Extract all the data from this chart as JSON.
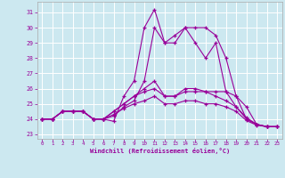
{
  "xlabel": "Windchill (Refroidissement éolien,°C)",
  "bg_color": "#cce8f0",
  "line_color": "#990099",
  "grid_color": "#ffffff",
  "xlim": [
    -0.5,
    23.5
  ],
  "ylim": [
    22.7,
    31.7
  ],
  "yticks": [
    23,
    24,
    25,
    26,
    27,
    28,
    29,
    30,
    31
  ],
  "xticks": [
    0,
    1,
    2,
    3,
    4,
    5,
    6,
    7,
    8,
    9,
    10,
    11,
    12,
    13,
    14,
    15,
    16,
    17,
    18,
    19,
    20,
    21,
    22,
    23
  ],
  "lines": [
    {
      "x": [
        0,
        1,
        2,
        3,
        4,
        5,
        6,
        7,
        8,
        9,
        10,
        11,
        12,
        13,
        14,
        15,
        16,
        17,
        18,
        19,
        20,
        21,
        22
      ],
      "y": [
        24.0,
        24.0,
        24.5,
        24.5,
        24.5,
        24.0,
        24.0,
        23.85,
        25.5,
        26.5,
        30.0,
        31.2,
        29.0,
        29.0,
        30.0,
        29.0,
        28.0,
        29.0,
        25.8,
        24.8,
        24.1,
        23.65,
        23.5
      ]
    },
    {
      "x": [
        0,
        1,
        2,
        3,
        4,
        5,
        6,
        7,
        8,
        9,
        10,
        11,
        12,
        13,
        14,
        15,
        16,
        17,
        18,
        19,
        20,
        21,
        22,
        23
      ],
      "y": [
        24.0,
        24.0,
        24.5,
        24.5,
        24.5,
        24.0,
        24.0,
        24.2,
        24.8,
        25.2,
        26.5,
        30.0,
        29.0,
        29.5,
        30.0,
        30.0,
        30.0,
        29.5,
        28.0,
        25.5,
        24.8,
        23.65,
        23.5,
        23.5
      ]
    },
    {
      "x": [
        0,
        1,
        2,
        3,
        4,
        5,
        6,
        7,
        8,
        9,
        10,
        11,
        12,
        13,
        14,
        15,
        16,
        17,
        18,
        19,
        20,
        21,
        22,
        23
      ],
      "y": [
        24.0,
        24.0,
        24.5,
        24.5,
        24.5,
        24.0,
        24.0,
        24.5,
        25.0,
        25.5,
        26.0,
        26.5,
        25.5,
        25.5,
        26.0,
        26.0,
        25.8,
        25.8,
        25.8,
        25.5,
        24.0,
        23.65,
        23.5,
        23.5
      ]
    },
    {
      "x": [
        0,
        1,
        2,
        3,
        4,
        5,
        6,
        7,
        8,
        9,
        10,
        11,
        12,
        13,
        14,
        15,
        16,
        17,
        18,
        19,
        20,
        21,
        22,
        23
      ],
      "y": [
        24.0,
        24.0,
        24.5,
        24.5,
        24.5,
        24.0,
        24.0,
        24.5,
        25.0,
        25.5,
        25.8,
        26.0,
        25.5,
        25.5,
        25.8,
        25.8,
        25.8,
        25.5,
        25.2,
        24.8,
        24.0,
        23.65,
        23.5,
        23.5
      ]
    },
    {
      "x": [
        0,
        1,
        2,
        3,
        4,
        5,
        6,
        7,
        8,
        9,
        10,
        11,
        12,
        13,
        14,
        15,
        16,
        17,
        18,
        19,
        20,
        21,
        22,
        23
      ],
      "y": [
        24.0,
        24.0,
        24.5,
        24.5,
        24.5,
        24.0,
        24.0,
        24.3,
        24.7,
        25.0,
        25.2,
        25.5,
        25.0,
        25.0,
        25.2,
        25.2,
        25.0,
        25.0,
        24.8,
        24.5,
        23.9,
        23.6,
        23.5,
        23.5
      ]
    }
  ]
}
